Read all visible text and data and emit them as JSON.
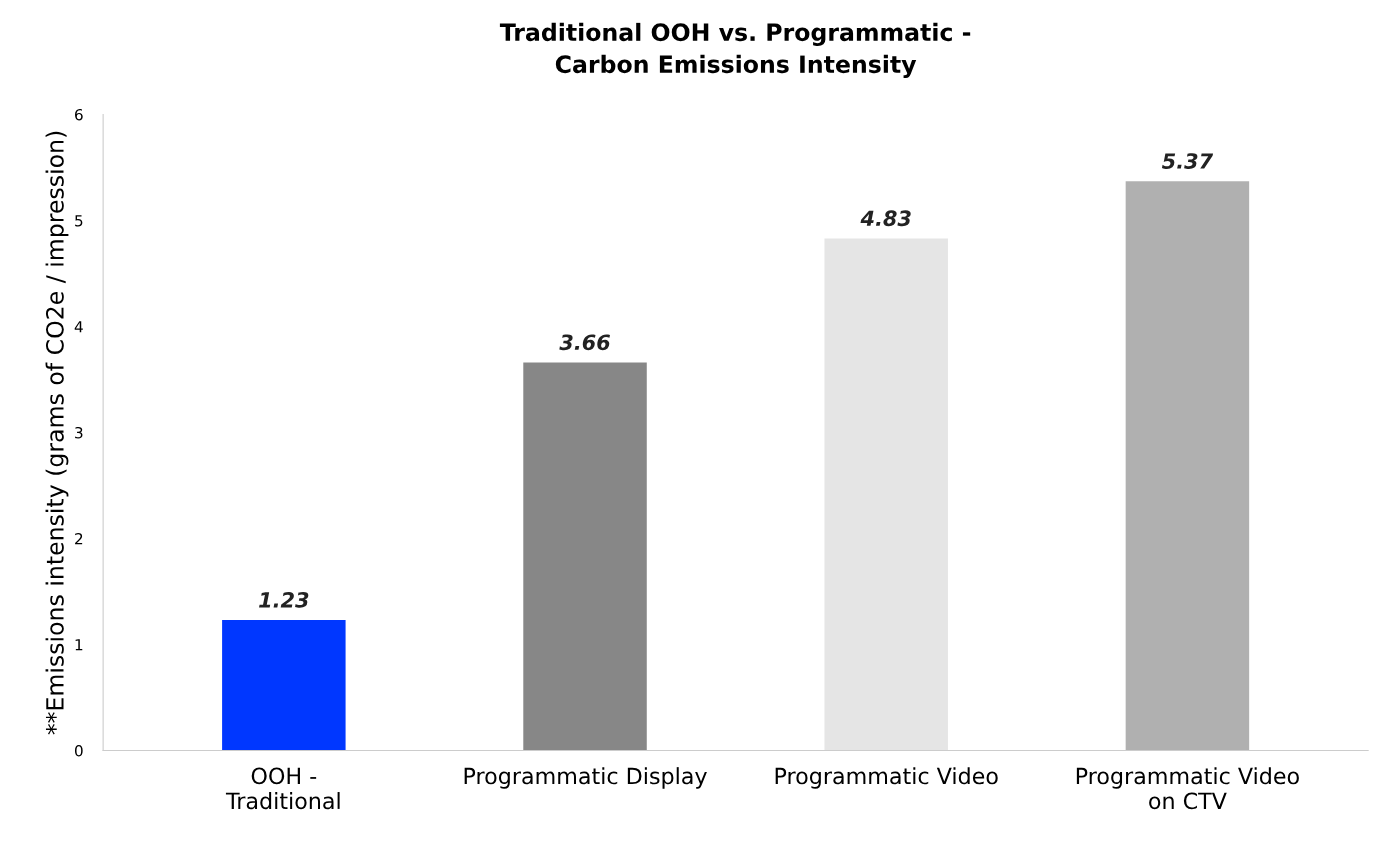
{
  "chart_data": {
    "type": "bar",
    "title": "Traditional OOH vs. Programmatic -\nCarbon Emissions Intensity",
    "ylabel": "**Emissions intensity (grams of CO2e / impression)",
    "categories": [
      "OOH -\nTraditional",
      "Programmatic Display",
      "Programmatic Video",
      "Programmatic Video\non CTV"
    ],
    "values": [
      1.23,
      3.66,
      4.83,
      5.37
    ],
    "colors": [
      "#0037ff",
      "#878787",
      "#e5e5e5",
      "#b0b0b0"
    ],
    "ylim": [
      0,
      6
    ],
    "yticks": [
      0,
      1,
      2,
      3,
      4,
      5,
      6
    ],
    "data_labels": true,
    "grid": false,
    "legend": false
  }
}
